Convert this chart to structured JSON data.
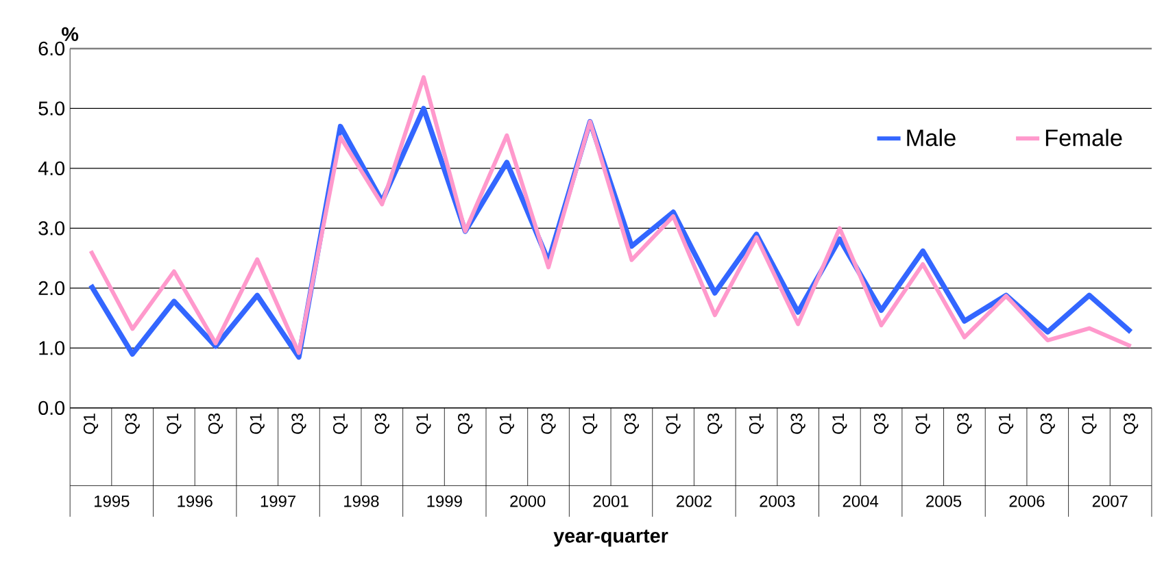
{
  "chart_data": {
    "type": "line",
    "xlabel": "year-quarter",
    "ylabel": "%",
    "categories": [
      "Q1",
      "Q3",
      "Q1",
      "Q3",
      "Q1",
      "Q3",
      "Q1",
      "Q3",
      "Q1",
      "Q3",
      "Q1",
      "Q3",
      "Q1",
      "Q3",
      "Q1",
      "Q3",
      "Q1",
      "Q3",
      "Q1",
      "Q3",
      "Q1",
      "Q3",
      "Q1",
      "Q3",
      "Q1",
      "Q3"
    ],
    "series": [
      {
        "name": "Male",
        "color": "#3366ff",
        "values": [
          2.05,
          0.9,
          1.78,
          1.03,
          1.88,
          0.85,
          4.7,
          3.45,
          5.0,
          2.95,
          4.1,
          2.45,
          4.78,
          2.7,
          3.27,
          1.92,
          2.9,
          1.6,
          2.82,
          1.63,
          2.62,
          1.45,
          1.88,
          1.27,
          1.88,
          1.27
        ]
      },
      {
        "name": "Female",
        "color": "#ff99cc",
        "values": [
          2.62,
          1.32,
          2.28,
          1.08,
          2.48,
          0.92,
          4.52,
          3.4,
          5.52,
          2.95,
          4.55,
          2.35,
          4.78,
          2.47,
          3.2,
          1.55,
          2.85,
          1.4,
          3.0,
          1.38,
          2.4,
          1.18,
          1.87,
          1.13,
          1.33,
          1.03
        ]
      }
    ],
    "annotations": [
      "1995",
      "1996",
      "1997",
      "1998",
      "1999",
      "2000",
      "2001",
      "2002",
      "2003",
      "2004",
      "2005",
      "2006",
      "2007"
    ],
    "ylim": [
      0,
      6
    ],
    "yticks": [
      {
        "value": 0,
        "label": "0.0"
      },
      {
        "value": 1,
        "label": "1.0"
      },
      {
        "value": 2,
        "label": "2.0"
      },
      {
        "value": 3,
        "label": "3.0"
      },
      {
        "value": 4,
        "label": "4.0"
      },
      {
        "value": 5,
        "label": "5.0"
      },
      {
        "value": 6,
        "label": "6.0"
      }
    ],
    "grid": "y",
    "legend": "top right",
    "marker": "none",
    "line_style": "solid"
  }
}
